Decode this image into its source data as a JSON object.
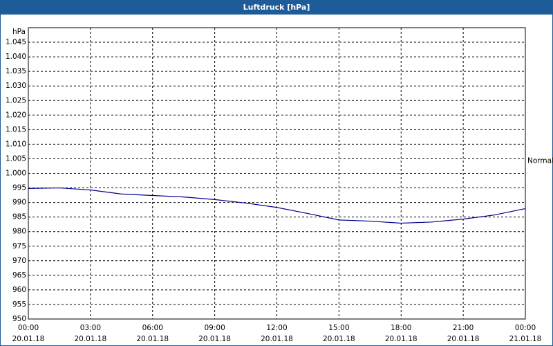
{
  "chart_data": {
    "type": "line",
    "title": "Luftdruck [hPa]",
    "y_label": "hPa",
    "x": [
      0,
      1.5,
      3,
      4.5,
      6,
      7.5,
      9,
      10.5,
      12,
      13.5,
      15,
      16.5,
      18,
      19.5,
      21,
      22.5,
      24
    ],
    "series": [
      {
        "color": "#00008b",
        "values": [
          994.8,
          995,
          994.3,
          992.9,
          992.4,
          991.9,
          991,
          989.8,
          988.3,
          986.2,
          984,
          983.6,
          982.9,
          983.3,
          984.3,
          985.7,
          987.9
        ]
      }
    ],
    "xlim": [
      0,
      24
    ],
    "xticks": [
      {
        "value": 0,
        "label": "00:00",
        "date": "20.01.18"
      },
      {
        "value": 3,
        "label": "03:00",
        "date": "20.01.18"
      },
      {
        "value": 6,
        "label": "06:00",
        "date": "20.01.18"
      },
      {
        "value": 9,
        "label": "09:00",
        "date": "20.01.18"
      },
      {
        "value": 12,
        "label": "12:00",
        "date": "20.01.18"
      },
      {
        "value": 15,
        "label": "15:00",
        "date": "20.01.18"
      },
      {
        "value": 18,
        "label": "18:00",
        "date": "20.01.18"
      },
      {
        "value": 21,
        "label": "21:00",
        "date": "20.01.18"
      },
      {
        "value": 24,
        "label": "00:00",
        "date": "21.01.18"
      }
    ],
    "ylim": [
      950,
      1050
    ],
    "yticks": [
      950,
      955,
      960,
      965,
      970,
      975,
      980,
      985,
      990,
      995,
      {
        "value": 1000,
        "label": "1.000"
      },
      {
        "value": 1005,
        "label": "1.005"
      },
      {
        "value": 1010,
        "label": "1.010"
      },
      {
        "value": 1015,
        "label": "1.015"
      },
      {
        "value": 1020,
        "label": "1.020"
      },
      {
        "value": 1025,
        "label": "1.025"
      },
      {
        "value": 1030,
        "label": "1.030"
      },
      {
        "value": 1035,
        "label": "1.035"
      },
      {
        "value": 1040,
        "label": "1.040"
      },
      {
        "value": 1045,
        "label": "1.045"
      }
    ],
    "grid": true,
    "annotation": {
      "text": "Normal",
      "y": 1004.3
    }
  }
}
